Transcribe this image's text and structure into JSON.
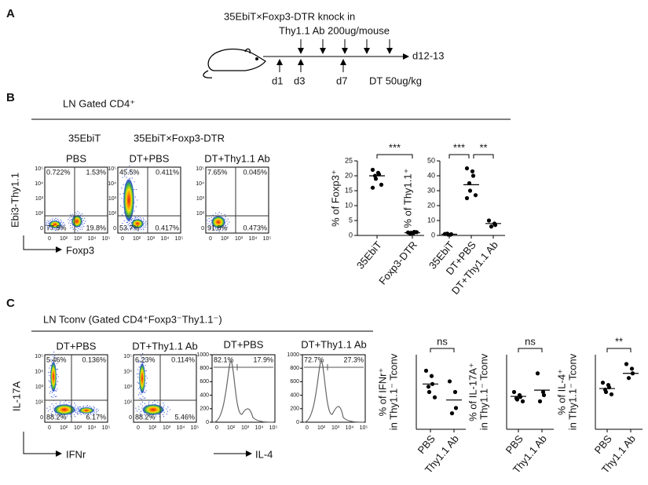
{
  "panel_a": {
    "label": "A",
    "title": "35EbiT×Foxp3-DTR knock in",
    "antibody": "Thy1.1 Ab 200ug/mouse",
    "end": "d12-13",
    "days": [
      "d1",
      "d3",
      "d7"
    ],
    "dt": "DT 50ug/kg"
  },
  "panel_b": {
    "label": "B",
    "gate": "LN Gated CD4⁺",
    "group_left": "35EbiT",
    "group_right": "35EbiT×Foxp3-DTR",
    "y_axis": "Ebi3-Thy1.1",
    "x_axis": "Foxp3",
    "flow_plots": [
      {
        "title": "PBS",
        "quadrants": [
          "0.722%",
          "1.53%",
          "77.9%",
          "19.8%"
        ]
      },
      {
        "title": "DT+PBS",
        "quadrants": [
          "45.5%",
          "0.411%",
          "53.7%",
          "0.417%"
        ]
      },
      {
        "title": "DT+Thy1.1 Ab",
        "quadrants": [
          "7.65%",
          "0.045%",
          "91.8%",
          "0.473%"
        ]
      }
    ]
  },
  "panel_c": {
    "label": "C",
    "gate": "LN Tconv (Gated CD4⁺Foxp3⁻Thy1.1⁻)",
    "y_axis": "IL-17A",
    "x_axis": "IFNr",
    "hist_axis": "IL-4",
    "flow_plots": [
      {
        "title": "DT+PBS",
        "quadrants": [
          "5.46%",
          "0.136%",
          "88.2%",
          "6.17%"
        ]
      },
      {
        "title": "DT+Thy1.1 Ab",
        "quadrants": [
          "6.23%",
          "0.114%",
          "88.2%",
          "5.46%"
        ]
      }
    ],
    "histograms": [
      {
        "title": "DT+PBS",
        "gates": [
          "82.1%",
          "17.9%"
        ]
      },
      {
        "title": "DT+Thy1.1 Ab",
        "gates": [
          "72.7%",
          "27.3%"
        ]
      }
    ],
    "hist_ylim": [
      0,
      1000
    ],
    "hist_yticks": [
      0,
      200,
      400,
      600,
      800,
      1000
    ]
  },
  "flow_ticks": [
    "0",
    "10²",
    "10³",
    "10⁴",
    "10⁵"
  ],
  "dot_plots": [
    {
      "ylabel": [
        "% of Foxp3⁺"
      ],
      "categories": [
        "35EbiT",
        "Foxp3-DTR"
      ],
      "groups": [
        [
          22,
          21,
          20.5,
          20,
          19,
          17,
          16
        ],
        [
          1,
          0.8,
          1.2,
          0.5,
          0.9,
          1.1
        ]
      ],
      "means": [
        20,
        0.9
      ],
      "ylim": [
        0,
        25
      ],
      "yticks": [
        0,
        5,
        10,
        15,
        20,
        25
      ],
      "significance": [
        "***"
      ]
    },
    {
      "ylabel": [
        "% of Thy1.1⁺"
      ],
      "categories": [
        "35EbiT",
        "DT+PBS",
        "DT+Thy1.1 Ab"
      ],
      "groups": [
        [
          1,
          0.5,
          0.8,
          1.2,
          0.6
        ],
        [
          45,
          43,
          40,
          35,
          30,
          27,
          25
        ],
        [
          10,
          8,
          7,
          6
        ]
      ],
      "means": [
        0.8,
        34,
        8
      ],
      "ylim": [
        0,
        50
      ],
      "yticks": [
        0,
        10,
        20,
        30,
        40,
        50
      ],
      "significance": [
        "***",
        "**"
      ]
    },
    {
      "ylabel": [
        "% of IFNr⁺",
        "in Thy1.1⁻ Tconv"
      ],
      "categories": [
        "PBS",
        "Thy1.1 Ab"
      ],
      "groups": [
        [
          11,
          10,
          8.5,
          8,
          7,
          6
        ],
        [
          9,
          7,
          4,
          3
        ]
      ],
      "means": [
        8.5,
        5.5
      ],
      "ylim": [
        0,
        14
      ],
      "significance": [
        "ns"
      ]
    },
    {
      "ylabel": [
        "% of IL-17A⁺",
        "in Thy1.1⁻ Tconv"
      ],
      "categories": [
        "PBS",
        "Thy1.1 Ab"
      ],
      "groups": [
        [
          6,
          5.5,
          5.2,
          5,
          4.8,
          4.5
        ],
        [
          9,
          6,
          5.5,
          4.5
        ]
      ],
      "means": [
        5.3,
        6.3
      ],
      "ylim": [
        0,
        12
      ],
      "significance": [
        "ns"
      ]
    },
    {
      "ylabel": [
        "% of IL-4⁺",
        "in Thy1.1⁻ Tconv"
      ],
      "categories": [
        "PBS",
        "Thy1.1 Ab"
      ],
      "groups": [
        [
          20,
          19,
          18,
          17,
          16,
          15
        ],
        [
          28,
          26,
          24,
          22
        ]
      ],
      "means": [
        17.5,
        24
      ],
      "ylim": [
        0,
        32
      ],
      "significance": [
        "**"
      ]
    }
  ]
}
